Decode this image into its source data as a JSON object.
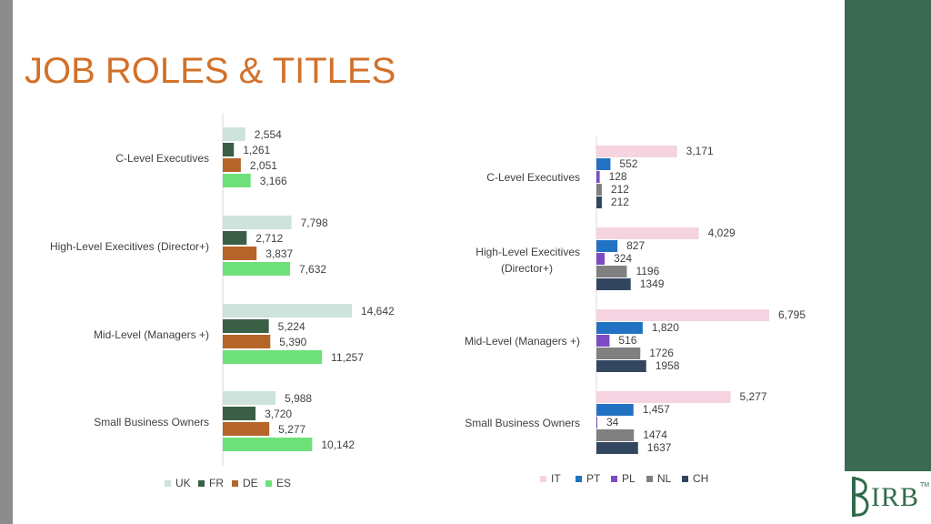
{
  "title": "JOB ROLES & TITLES",
  "logo": {
    "text": "IRB",
    "tm": "TM"
  },
  "colors": {
    "title": "#d2712a",
    "panel": "#3a6b52",
    "UK": "#cde3dc",
    "FR": "#3b5e47",
    "DE": "#b5652a",
    "ES": "#6ee07a",
    "IT": "#f6d3e0",
    "PT": "#2272c3",
    "PL": "#7d4cc4",
    "NL": "#808080",
    "CH": "#334660"
  },
  "chart_data": [
    {
      "type": "bar",
      "orientation": "horizontal",
      "categories": [
        "C-Level Executives",
        "High-Level Execitives (Director+)",
        "Mid-Level (Managers +)",
        "Small Business Owners"
      ],
      "series": [
        {
          "name": "UK",
          "values": [
            2554,
            7798,
            14642,
            5988
          ],
          "labels": [
            "2,554",
            "7,798",
            "14,642",
            "5,988"
          ]
        },
        {
          "name": "FR",
          "values": [
            1261,
            2712,
            5224,
            3720
          ],
          "labels": [
            "1,261",
            "2,712",
            "5,224",
            "3,720"
          ]
        },
        {
          "name": "DE",
          "values": [
            2051,
            3837,
            5390,
            5277
          ],
          "labels": [
            "2,051",
            "3,837",
            "5,390",
            "5,277"
          ]
        },
        {
          "name": "ES",
          "values": [
            3166,
            7632,
            11257,
            10142
          ],
          "labels": [
            "3,166",
            "7,632",
            "11,257",
            "10,142"
          ]
        }
      ],
      "legend_position": "bottom",
      "grid": false
    },
    {
      "type": "bar",
      "orientation": "horizontal",
      "categories": [
        "C-Level Executives",
        "High-Level Execitives (Director+)",
        "Mid-Level (Managers +)",
        "Small Business Owners"
      ],
      "series": [
        {
          "name": "IT",
          "values": [
            3171,
            4029,
            6795,
            5277
          ],
          "labels": [
            "3,171",
            "4,029",
            "6,795",
            "5,277"
          ]
        },
        {
          "name": "PT",
          "values": [
            552,
            827,
            1820,
            1457
          ],
          "labels": [
            "552",
            "827",
            "1,820",
            "1,457"
          ]
        },
        {
          "name": "PL",
          "values": [
            128,
            324,
            516,
            34
          ],
          "labels": [
            "128",
            "324",
            "516",
            "34"
          ]
        },
        {
          "name": "NL",
          "values": [
            212,
            1196,
            1726,
            1474
          ],
          "labels": [
            "212",
            "1196",
            "1726",
            "1474"
          ]
        },
        {
          "name": "CH",
          "values": [
            212,
            1349,
            1958,
            1637
          ],
          "labels": [
            "212",
            "1349",
            "1958",
            "1637"
          ]
        }
      ],
      "legend_position": "bottom",
      "grid": false
    }
  ]
}
